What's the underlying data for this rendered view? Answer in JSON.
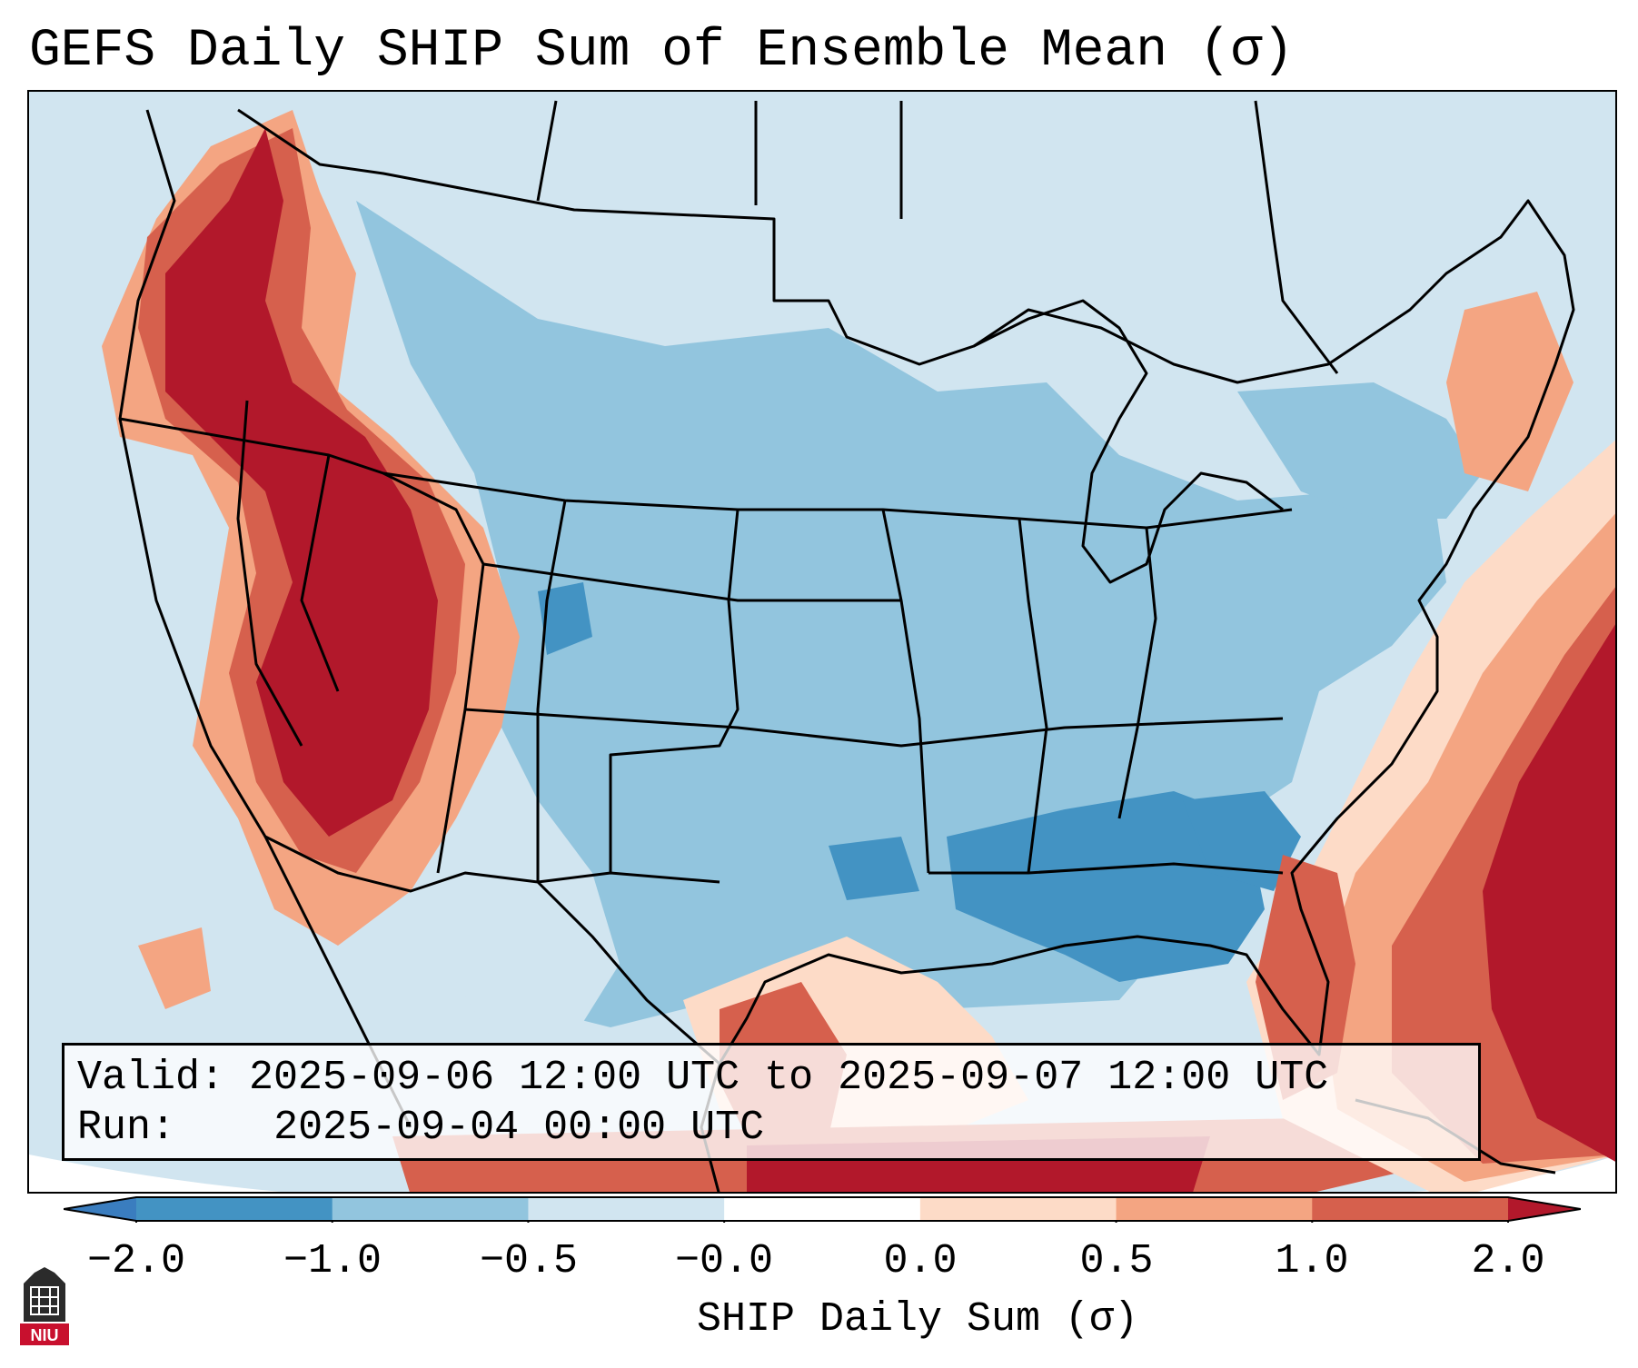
{
  "title": "GEFS Daily SHIP Sum of Ensemble Mean (σ)",
  "info": {
    "valid_label": "Valid:",
    "valid_value": "2025-09-06 12:00 UTC to 2025-09-07 12:00 UTC",
    "run_label": "Run:",
    "run_value": "2025-09-04 00:00 UTC"
  },
  "colorbar": {
    "label": "SHIP Daily Sum (σ)",
    "ticks": [
      "−2.0",
      "−1.0",
      "−0.5",
      "−0.0",
      "0.0",
      "0.5",
      "1.0",
      "2.0"
    ],
    "bins": [
      {
        "range": "< -2.0",
        "color": "#3a7dbf"
      },
      {
        "range": "-2.0 to -1.0",
        "color": "#4393c3"
      },
      {
        "range": "-1.0 to -0.5",
        "color": "#92c5de"
      },
      {
        "range": "-0.5 to -0.0",
        "color": "#d1e5f0"
      },
      {
        "range": "-0.0 to 0.0",
        "color": "#ffffff"
      },
      {
        "range": "0.0 to 0.5",
        "color": "#fddbc7"
      },
      {
        "range": "0.5 to 1.0",
        "color": "#f4a582"
      },
      {
        "range": "1.0 to 2.0",
        "color": "#d6604d"
      },
      {
        "range": "> 2.0",
        "color": "#b2182b"
      }
    ]
  },
  "map": {
    "region": "Contiguous United States",
    "background_color": "#d1e5f0"
  },
  "logo": {
    "text": "NIU",
    "color": "#c8102e"
  }
}
